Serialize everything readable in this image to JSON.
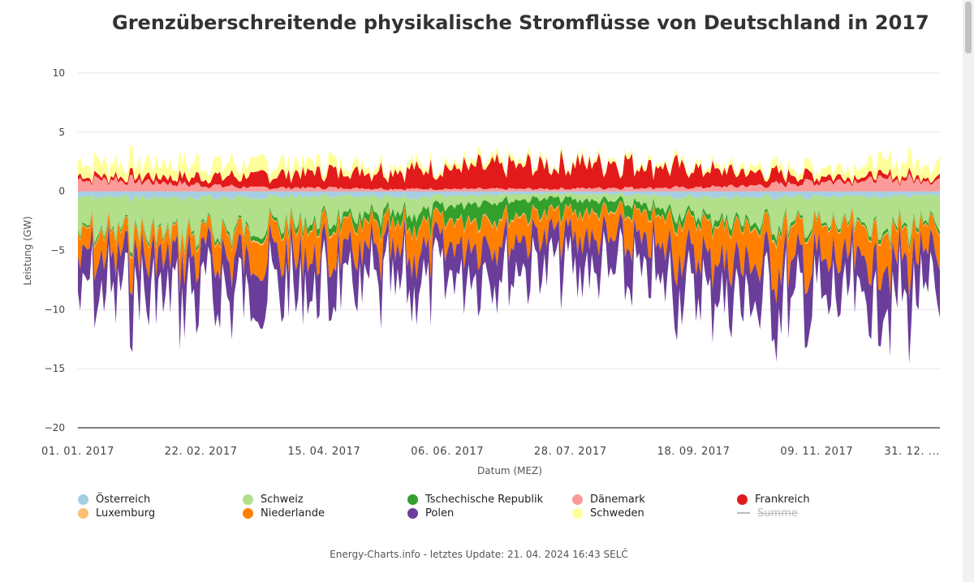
{
  "chart_data": {
    "type": "area",
    "title": "Grenzüberschreitende physikalische Stromflüsse von Deutschland in 2017",
    "xlabel": "Datum (MEZ)",
    "ylabel": "Leistung (GW)",
    "ylim": [
      -20,
      10
    ],
    "yticks": [
      "10",
      "5",
      "0",
      "−5",
      "−10",
      "−15",
      "−20"
    ],
    "ytick_values": [
      10,
      5,
      0,
      -5,
      -10,
      -15,
      -20
    ],
    "xticks": [
      "01. 01. 2017",
      "22. 02. 2017",
      "15. 04. 2017",
      "06. 06. 2017",
      "28. 07. 2017",
      "18. 09. 2017",
      "09. 11. 2017",
      "31. 12. ..."
    ],
    "x_range": [
      "2017-01-01",
      "2017-12-31"
    ],
    "legend_position": "bottom",
    "series": [
      {
        "name": "Österreich",
        "color": "#a6cee3",
        "side": "negative",
        "monthly_gw": [
          -0.5,
          -0.6,
          -0.5,
          -0.4,
          -0.6,
          -0.3,
          -0.2,
          -0.3,
          -0.5,
          -0.5,
          -0.5,
          -0.4
        ]
      },
      {
        "name": "Schweiz",
        "color": "#b2df8a",
        "side": "negative",
        "monthly_gw": [
          -2.8,
          -3.0,
          -2.5,
          -2.0,
          -1.5,
          -0.6,
          -0.4,
          -0.6,
          -1.5,
          -2.2,
          -2.4,
          -2.6
        ]
      },
      {
        "name": "Tschechische Republik",
        "color": "#33a02c",
        "side": "negative",
        "monthly_gw": [
          -0.2,
          -0.2,
          -0.3,
          -0.5,
          -1.0,
          -1.3,
          -1.2,
          -0.9,
          -0.5,
          -0.4,
          -0.2,
          -0.3
        ]
      },
      {
        "name": "Dänemark",
        "color": "#fb9a99",
        "side": "positive",
        "monthly_gw": [
          1.0,
          0.6,
          0.3,
          0.3,
          0.2,
          0.2,
          0.2,
          0.3,
          0.3,
          0.5,
          0.9,
          1.0
        ]
      },
      {
        "name": "Frankreich",
        "color": "#e31a1c",
        "side": "positive",
        "monthly_gw": [
          0.3,
          0.6,
          1.0,
          1.4,
          1.6,
          1.8,
          2.0,
          2.2,
          1.6,
          1.0,
          0.4,
          0.3
        ]
      },
      {
        "name": "Luxemburg",
        "color": "#fdbf6f",
        "side": "negative",
        "monthly_gw": [
          -0.1,
          -0.1,
          -0.1,
          -0.1,
          -0.1,
          -0.1,
          -0.1,
          -0.1,
          -0.1,
          -0.1,
          -0.1,
          -0.1
        ]
      },
      {
        "name": "Niederlande",
        "color": "#ff7f00",
        "side": "negative",
        "monthly_gw": [
          -2.0,
          -1.8,
          -2.2,
          -2.5,
          -2.4,
          -2.0,
          -1.8,
          -2.3,
          -2.8,
          -3.0,
          -3.0,
          -2.5
        ]
      },
      {
        "name": "Polen",
        "color": "#6a3d9a",
        "side": "negative",
        "monthly_gw": [
          -3.0,
          -3.2,
          -3.0,
          -2.8,
          -2.8,
          -2.5,
          -2.6,
          -2.8,
          -3.0,
          -3.2,
          -3.3,
          -3.5
        ]
      },
      {
        "name": "Schweden",
        "color": "#ffff99",
        "side": "positive",
        "monthly_gw": [
          1.2,
          1.2,
          1.0,
          0.8,
          0.5,
          0.4,
          0.3,
          0.3,
          0.3,
          0.5,
          0.8,
          1.3
        ]
      },
      {
        "name": "Summe",
        "color": "#bbbbbb",
        "hidden": true
      }
    ]
  },
  "footer": "Energy-Charts.info - letztes Update: 21. 04. 2024 16:43 SELČ"
}
